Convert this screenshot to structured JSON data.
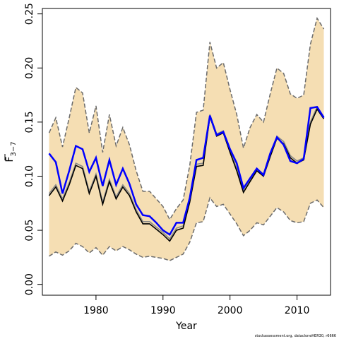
{
  "chart_data": {
    "type": "line",
    "xlabel": "Year",
    "ylabel": "F",
    "ylabel_sub": "3−7",
    "xlim": [
      1972,
      2015
    ],
    "ylim": [
      -0.01,
      0.255
    ],
    "x_ticks": [
      1980,
      1990,
      2000,
      2010
    ],
    "y_ticks": [
      0.0,
      0.05,
      0.1,
      0.15,
      0.2,
      0.25
    ],
    "y_tick_labels": [
      "0.00",
      "0.05",
      "0.10",
      "0.15",
      "0.20",
      "0.25"
    ],
    "credit": "stockassessment.org, datacloneHER30, r6666",
    "colors": {
      "band_fill": "#f5deb3",
      "band_edge": "#6b6b6b",
      "line_black": "#000000",
      "line_gray": "#8a8a8a",
      "line_blue": "#0000ff"
    },
    "x": [
      1973,
      1974,
      1975,
      1976,
      1977,
      1978,
      1979,
      1980,
      1981,
      1982,
      1983,
      1984,
      1985,
      1986,
      1987,
      1988,
      1989,
      1990,
      1991,
      1992,
      1993,
      1994,
      1995,
      1996,
      1997,
      1998,
      1999,
      2000,
      2001,
      2002,
      2003,
      2004,
      2005,
      2006,
      2007,
      2008,
      2009,
      2010,
      2011,
      2012,
      2013,
      2014
    ],
    "series": [
      {
        "role": "upper",
        "values": [
          0.14,
          0.154,
          0.127,
          0.154,
          0.182,
          0.177,
          0.14,
          0.165,
          0.122,
          0.157,
          0.128,
          0.145,
          0.129,
          0.105,
          0.086,
          0.086,
          0.079,
          0.072,
          0.06,
          0.07,
          0.078,
          0.11,
          0.159,
          0.161,
          0.224,
          0.2,
          0.205,
          0.18,
          0.157,
          0.126,
          0.145,
          0.157,
          0.15,
          0.176,
          0.2,
          0.195,
          0.176,
          0.172,
          0.175,
          0.222,
          0.246,
          0.236
        ]
      },
      {
        "role": "lower",
        "values": [
          0.026,
          0.03,
          0.027,
          0.031,
          0.038,
          0.035,
          0.029,
          0.034,
          0.027,
          0.035,
          0.031,
          0.035,
          0.032,
          0.028,
          0.025,
          0.026,
          0.025,
          0.024,
          0.022,
          0.025,
          0.028,
          0.039,
          0.057,
          0.058,
          0.08,
          0.072,
          0.074,
          0.065,
          0.056,
          0.045,
          0.05,
          0.057,
          0.055,
          0.063,
          0.071,
          0.067,
          0.059,
          0.057,
          0.058,
          0.075,
          0.078,
          0.071
        ]
      },
      {
        "role": "estimate",
        "values": [
          0.082,
          0.09,
          0.077,
          0.092,
          0.11,
          0.107,
          0.084,
          0.1,
          0.074,
          0.095,
          0.079,
          0.09,
          0.082,
          0.067,
          0.056,
          0.056,
          0.051,
          0.046,
          0.04,
          0.05,
          0.052,
          0.076,
          0.109,
          0.11,
          0.155,
          0.137,
          0.14,
          0.122,
          0.105,
          0.085,
          0.095,
          0.105,
          0.1,
          0.118,
          0.135,
          0.13,
          0.117,
          0.112,
          0.115,
          0.148,
          0.162,
          0.153
        ]
      },
      {
        "role": "estimate_gray",
        "values": [
          0.084,
          0.092,
          0.079,
          0.094,
          0.112,
          0.109,
          0.086,
          0.102,
          0.076,
          0.097,
          0.081,
          0.092,
          0.084,
          0.069,
          0.058,
          0.058,
          0.053,
          0.048,
          0.042,
          0.052,
          0.054,
          0.078,
          0.111,
          0.112,
          0.157,
          0.139,
          0.142,
          0.124,
          0.107,
          0.087,
          0.097,
          0.107,
          0.102,
          0.12,
          0.137,
          0.132,
          0.119,
          0.114,
          0.117,
          0.15,
          0.164,
          0.155
        ]
      },
      {
        "role": "estimate_blue",
        "values": [
          0.121,
          0.113,
          0.084,
          0.105,
          0.128,
          0.125,
          0.104,
          0.117,
          0.091,
          0.115,
          0.092,
          0.107,
          0.093,
          0.074,
          0.064,
          0.063,
          0.057,
          0.05,
          0.046,
          0.057,
          0.057,
          0.08,
          0.115,
          0.117,
          0.156,
          0.138,
          0.141,
          0.125,
          0.112,
          0.089,
          0.098,
          0.107,
          0.101,
          0.121,
          0.136,
          0.129,
          0.114,
          0.112,
          0.116,
          0.163,
          0.164,
          0.154
        ]
      }
    ]
  }
}
